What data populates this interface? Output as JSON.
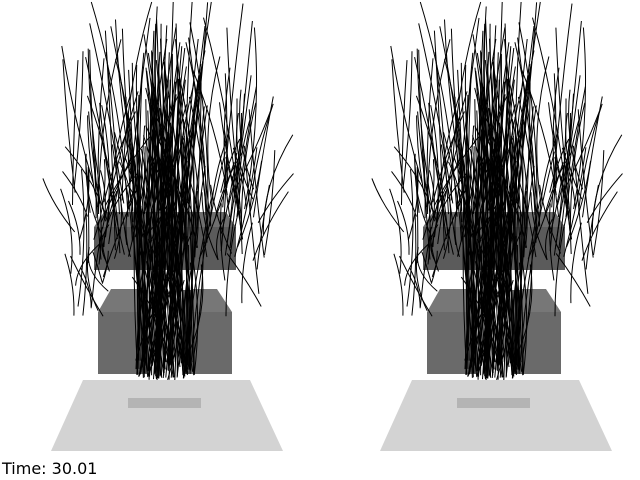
{
  "status": {
    "time_label": "Time: 30.01"
  },
  "scene": {
    "views": [
      "left-eye",
      "right-eye"
    ],
    "streamline_count": 300,
    "colors": {
      "background": "#ffffff",
      "floor": "#d3d3d3",
      "floor_marker": "#b4b4b4",
      "box_dark": "#5b5b5b",
      "box_mid": "#6a6a6a",
      "box_light": "#777777",
      "box_top": "#6e6e6e",
      "streamline": "#000000"
    }
  }
}
